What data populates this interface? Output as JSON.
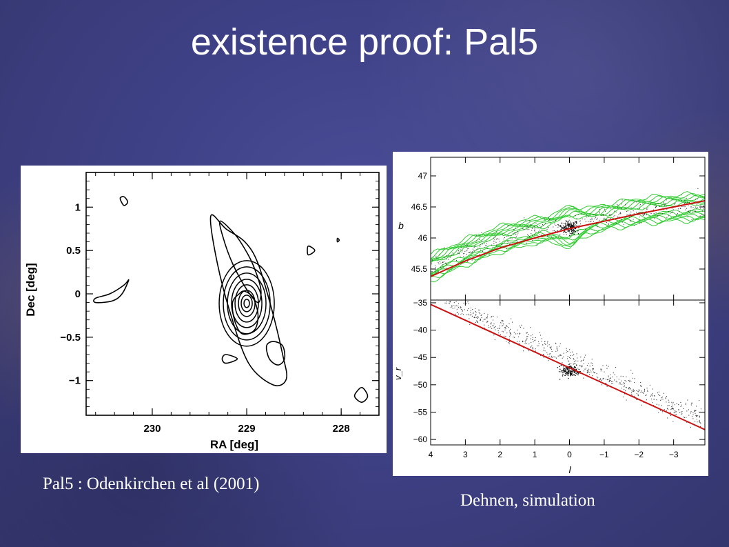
{
  "slide": {
    "title": "existence proof: Pal5",
    "caption_left": "Pal5 : Odenkirchen et al (2001)",
    "caption_right": "Dehnen, simulation"
  },
  "colors": {
    "background": "#3f4187",
    "contour_left": "#000000",
    "contour_right": "#33cc33",
    "fit_line": "#cc1111",
    "title": "#ffffff"
  },
  "chart_data": [
    {
      "type": "contour",
      "title": "",
      "xlabel": "RA [deg]",
      "ylabel": "Dec [deg]",
      "xlim": [
        230.7,
        227.6
      ],
      "ylim": [
        -1.4,
        1.4
      ],
      "xticks": [
        230,
        229,
        228
      ],
      "xtick_labels": [
        "230",
        "229",
        "228"
      ],
      "yticks": [
        1,
        0.5,
        0,
        -0.5,
        -1
      ],
      "ytick_labels": [
        "1",
        "0.5",
        "0",
        "−0.5",
        "−1"
      ],
      "grid": false,
      "cluster_center": {
        "ra": 229.0,
        "dec": -0.11
      },
      "contours": [
        {
          "ra": [
            229.38,
            229.22,
            229.02,
            228.88,
            228.73,
            228.62,
            228.58,
            228.72,
            228.98,
            229.18,
            229.32
          ],
          "dec": [
            0.9,
            0.75,
            0.6,
            0.35,
            -0.2,
            -0.7,
            -0.98,
            -1.05,
            -0.8,
            -0.2,
            0.4
          ]
        },
        {
          "ra": [
            229.28,
            229.12,
            229.0,
            228.92,
            228.85,
            228.88,
            229.0,
            229.15,
            229.25
          ],
          "dec": [
            0.84,
            0.68,
            0.48,
            0.3,
            0.05,
            -0.1,
            0.05,
            0.35,
            0.65
          ]
        },
        {
          "ra": [
            229.02,
            228.93,
            228.88,
            228.92,
            229.05,
            229.13,
            229.15,
            229.08
          ],
          "dec": [
            0.03,
            -0.05,
            -0.25,
            -0.42,
            -0.46,
            -0.3,
            -0.1,
            0.0
          ]
        },
        {
          "ra": [
            228.72,
            228.62,
            228.6,
            228.67,
            228.76,
            228.79
          ],
          "dec": [
            -0.55,
            -0.6,
            -0.75,
            -0.82,
            -0.75,
            -0.6
          ]
        },
        {
          "ra": [
            230.34,
            230.3,
            230.26,
            230.3
          ],
          "dec": [
            1.1,
            1.02,
            1.06,
            1.12
          ]
        },
        {
          "ra": [
            230.6,
            230.45,
            230.3,
            230.25,
            230.32,
            230.42,
            230.6
          ],
          "dec": [
            -0.05,
            0.0,
            0.1,
            0.16,
            0.0,
            -0.08,
            -0.1
          ]
        },
        {
          "ra": [
            228.35,
            228.28,
            228.35
          ],
          "dec": [
            0.55,
            0.5,
            0.45
          ]
        },
        {
          "ra": [
            229.22,
            229.1,
            229.22,
            229.26
          ],
          "dec": [
            -0.7,
            -0.75,
            -0.8,
            -0.75
          ]
        },
        {
          "ra": [
            227.85,
            227.78,
            227.72,
            227.78,
            227.85
          ],
          "dec": [
            -1.15,
            -1.08,
            -1.18,
            -1.25,
            -1.2
          ]
        },
        {
          "ra": [
            228.04,
            228.02,
            228.04
          ],
          "dec": [
            0.64,
            0.62,
            0.6
          ]
        }
      ]
    },
    {
      "type": "scatter",
      "title": "",
      "xlabel": "l",
      "ylabel": "b",
      "xlim": [
        4,
        -3.9
      ],
      "ylim": [
        45,
        47.3
      ],
      "xticks": [
        4,
        3,
        2,
        1,
        0,
        -1,
        -2,
        -3
      ],
      "yticks": [
        45.5,
        46,
        46.5,
        47
      ],
      "ytick_labels": [
        "45.5",
        "46",
        "46.5",
        "47"
      ],
      "grid": false,
      "cluster_center": {
        "l": 0.0,
        "b": 46.17
      },
      "fit_line": {
        "l": [
          4,
          3,
          2,
          1,
          0,
          -1,
          -2,
          -3,
          -3.9
        ],
        "b": [
          45.38,
          45.63,
          45.84,
          46.0,
          46.15,
          46.27,
          46.39,
          46.5,
          46.6
        ]
      },
      "stream_band": {
        "l": [
          4,
          3,
          2,
          1,
          0,
          -1,
          -2,
          -3,
          -3.9
        ],
        "b_center": [
          45.52,
          45.77,
          45.98,
          46.12,
          46.18,
          46.33,
          46.43,
          46.48,
          46.5
        ]
      }
    },
    {
      "type": "scatter",
      "title": "",
      "xlabel": "l",
      "ylabel": "v_r",
      "xlim": [
        4,
        -3.9
      ],
      "ylim": [
        -61,
        -34.5
      ],
      "xticks": [
        4,
        3,
        2,
        1,
        0,
        -1,
        -2,
        -3
      ],
      "xtick_labels": [
        "4",
        "3",
        "2",
        "1",
        "0",
        "−1",
        "−2",
        "−3"
      ],
      "yticks": [
        -35,
        -40,
        -45,
        -50,
        -55,
        -60
      ],
      "ytick_labels": [
        "−35",
        "−40",
        "−45",
        "−50",
        "−55",
        "−60"
      ],
      "grid": false,
      "cluster_center": {
        "l": 0.0,
        "v": -47.5
      },
      "fit_line": {
        "l": [
          4,
          -3.9
        ],
        "v": [
          -35.3,
          -58.2
        ]
      }
    }
  ]
}
